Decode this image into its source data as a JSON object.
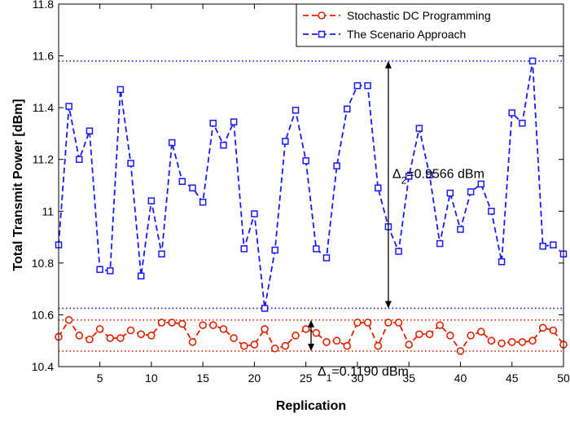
{
  "chart_data": {
    "type": "line",
    "xlabel": "Replication",
    "ylabel": "Total Transmit Power [dBm]",
    "xlim": [
      1,
      50
    ],
    "ylim": [
      10.4,
      11.8
    ],
    "xticks": [
      5,
      10,
      15,
      20,
      25,
      30,
      35,
      40,
      45,
      50
    ],
    "xtick_labels": [
      "5",
      "10",
      "15",
      "20",
      "25",
      "30",
      "35",
      "40",
      "45",
      "50"
    ],
    "yticks": [
      10.4,
      10.6,
      10.8,
      11.0,
      11.2,
      11.4,
      11.6,
      11.8
    ],
    "ytick_labels": [
      "10.4",
      "10.6",
      "10.8",
      "11",
      "11.2",
      "11.4",
      "11.6",
      "11.8"
    ],
    "grid": false,
    "legend_position": "top-right",
    "x": [
      1,
      2,
      3,
      4,
      5,
      6,
      7,
      8,
      9,
      10,
      11,
      12,
      13,
      14,
      15,
      16,
      17,
      18,
      19,
      20,
      21,
      22,
      23,
      24,
      25,
      26,
      27,
      28,
      29,
      30,
      31,
      32,
      33,
      34,
      35,
      36,
      37,
      38,
      39,
      40,
      41,
      42,
      43,
      44,
      45,
      46,
      47,
      48,
      49,
      50
    ],
    "series": [
      {
        "name": "Stochastic DC Programming",
        "color": "#dd2200",
        "marker": "circle",
        "line_style": "dashed",
        "values": [
          10.515,
          10.58,
          10.52,
          10.505,
          10.545,
          10.51,
          10.51,
          10.54,
          10.525,
          10.52,
          10.57,
          10.57,
          10.565,
          10.495,
          10.56,
          10.56,
          10.545,
          10.51,
          10.48,
          10.485,
          10.545,
          10.47,
          10.48,
          10.52,
          10.545,
          10.53,
          10.495,
          10.5,
          10.48,
          10.57,
          10.57,
          10.48,
          10.57,
          10.57,
          10.485,
          10.525,
          10.525,
          10.56,
          10.52,
          10.46,
          10.52,
          10.535,
          10.5,
          10.49,
          10.495,
          10.495,
          10.5,
          10.55,
          10.54,
          10.485
        ]
      },
      {
        "name": "The Scenario Approach",
        "color": "#1a1aff",
        "marker": "square",
        "line_style": "dashed",
        "values": [
          10.87,
          11.405,
          11.2,
          11.31,
          10.775,
          10.77,
          11.47,
          11.185,
          10.75,
          11.04,
          10.835,
          11.265,
          11.115,
          11.09,
          11.035,
          11.34,
          11.255,
          11.345,
          10.855,
          10.99,
          10.625,
          10.85,
          11.27,
          11.39,
          11.195,
          10.855,
          10.82,
          11.175,
          11.395,
          11.485,
          11.485,
          11.09,
          10.94,
          10.845,
          11.135,
          11.32,
          11.14,
          10.875,
          11.07,
          10.93,
          11.075,
          11.105,
          11.0,
          10.805,
          11.38,
          11.34,
          11.58,
          10.865,
          10.87,
          10.835
        ]
      }
    ],
    "reference_lines": [
      {
        "y": 11.58,
        "color": "#1a1aff"
      },
      {
        "y": 10.625,
        "color": "#1a1aff"
      },
      {
        "y": 10.58,
        "color": "#dd2200"
      },
      {
        "y": 10.46,
        "color": "#dd2200"
      }
    ],
    "annotations": [
      {
        "symbol": "Δ",
        "subscript": "2",
        "text": "=0.9566 dBm",
        "x": 33,
        "y_from": 10.625,
        "y_to": 11.58
      },
      {
        "symbol": "Δ",
        "subscript": "1",
        "text": "=0.1190 dBm",
        "x": 25.5,
        "y_from": 10.46,
        "y_to": 10.58
      }
    ]
  }
}
